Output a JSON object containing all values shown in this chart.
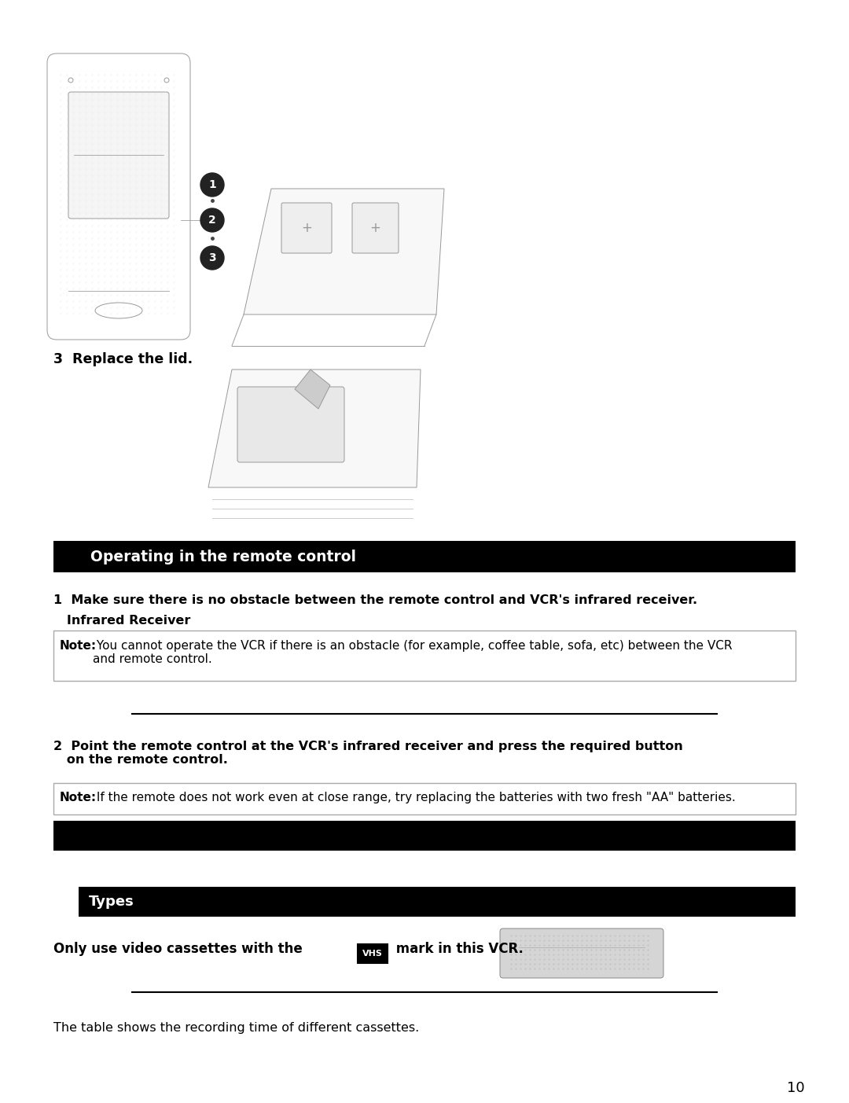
{
  "page_bg": "#ffffff",
  "page_number": "10",
  "section_header_1": "Operating in the remote control",
  "section_header_1_bg": "#000000",
  "section_header_1_color": "#ffffff",
  "step1_line1": "1  Make sure there is no obstacle between the remote control and VCR's infrared receiver.",
  "step1_line2": "   Infrared Receiver",
  "note1_bold": "Note:",
  "note1_text": " You cannot operate the VCR if there is an obstacle (for example, coffee table, sofa, etc) between the VCR\nand remote control.",
  "step2_text": "2  Point the remote control at the VCR's infrared receiver and press the required button\n   on the remote control.",
  "note2_bold": "Note:",
  "note2_text": " If the remote does not work even at close range, try replacing the batteries with two fresh \"AA\" batteries.",
  "black_bar_bg": "#000000",
  "section_header_2": "Types",
  "section_header_2_bg": "#000000",
  "section_header_2_color": "#ffffff",
  "cassette_text_bold": "Only use video cassettes with the ",
  "cassette_vhs": "VHS",
  "cassette_text_end": " mark in this VCR.",
  "bottom_text": "The table shows the recording time of different cassettes.",
  "step3_text": "3  Replace the lid.",
  "sketch_color": "#999999",
  "sketch_lw": 0.7
}
